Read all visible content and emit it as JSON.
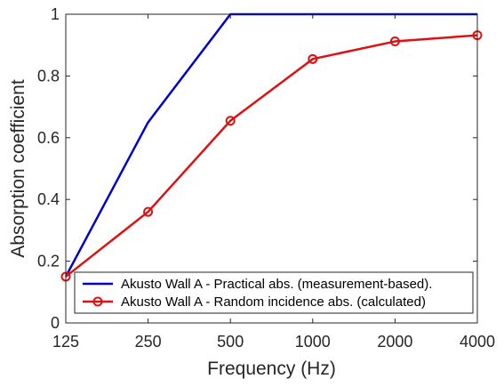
{
  "chart_data": {
    "type": "line",
    "categories": [
      "125",
      "250",
      "500",
      "1000",
      "2000",
      "4000"
    ],
    "xlabel": "Frequency (Hz)",
    "ylabel": "Absorption coefficient",
    "ylim": [
      0,
      1
    ],
    "yticks": [
      "0",
      "0.2",
      "0.4",
      "0.6",
      "0.8",
      "1"
    ],
    "grid": false,
    "legend_position": "bottom-right",
    "series": [
      {
        "name": "Akusto Wall A - Practical abs. (measurement-based).",
        "color": "#0000cc",
        "marker": "none",
        "values": [
          0.15,
          0.65,
          1.0,
          1.0,
          1.0,
          1.0
        ]
      },
      {
        "name": "Akusto Wall A - Random incidence abs. (calculated)",
        "color": "#dd1111",
        "marker": "circle",
        "values": [
          0.15,
          0.36,
          0.655,
          0.855,
          0.912,
          0.932
        ]
      }
    ]
  }
}
